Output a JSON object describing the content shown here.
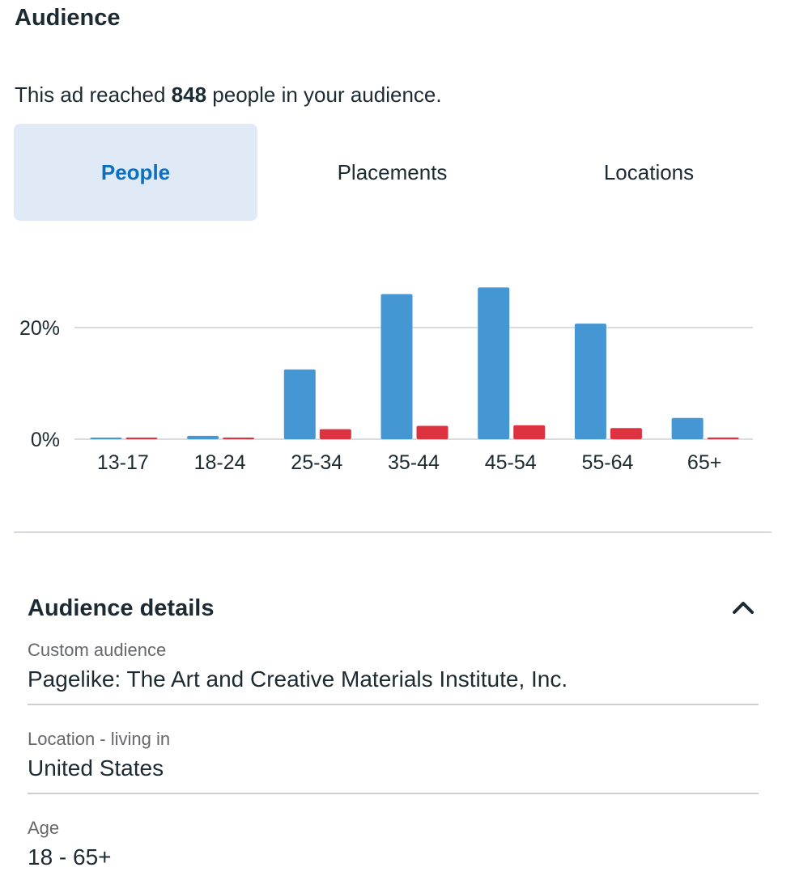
{
  "section_title": "Audience",
  "reach": {
    "prefix": "This ad reached ",
    "count": "848",
    "suffix": " people in your audience."
  },
  "tabs": [
    {
      "label": "People",
      "active": true
    },
    {
      "label": "Placements",
      "active": false
    },
    {
      "label": "Locations",
      "active": false
    }
  ],
  "colors": {
    "series_blue": "#4597d4",
    "series_red": "#dd3340",
    "active_tab_bg": "#e0eaf7",
    "active_tab_text": "#0a70c2"
  },
  "chart_data": {
    "type": "bar",
    "categories": [
      "13-17",
      "18-24",
      "25-34",
      "35-44",
      "45-54",
      "55-64",
      "65+"
    ],
    "series": [
      {
        "color": "#4597d4",
        "values": [
          0.2,
          0.6,
          12.5,
          26,
          27.2,
          20.7,
          3.8
        ]
      },
      {
        "color": "#dd3340",
        "values": [
          0.2,
          0.2,
          1.8,
          2.4,
          2.5,
          2.0,
          0.3
        ]
      }
    ],
    "y_ticks": [
      {
        "value": 0,
        "label": "0%"
      },
      {
        "value": 20,
        "label": "20%"
      }
    ],
    "ylim": [
      0,
      28
    ],
    "grid": true,
    "legend": "none"
  },
  "details": {
    "title": "Audience details",
    "items": [
      {
        "label": "Custom audience",
        "value": "Pagelike: The Art and Creative Materials Institute, Inc."
      },
      {
        "label": "Location - living in",
        "value": "United States"
      },
      {
        "label": "Age",
        "value": "18 - 65+"
      }
    ]
  }
}
